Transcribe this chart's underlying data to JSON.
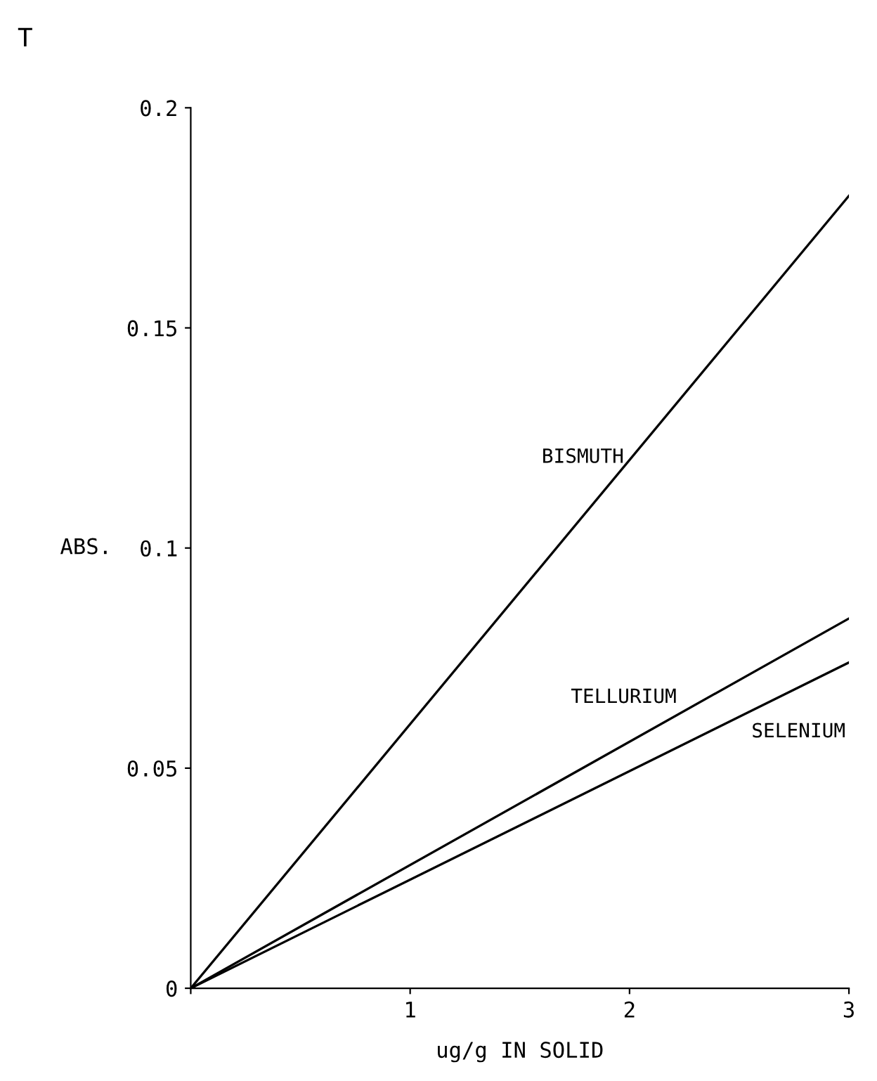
{
  "chart_data": {
    "type": "line",
    "xlabel": "ug/g IN SOLID",
    "ylabel": "ABS.",
    "annotations": [
      "T"
    ],
    "x": [
      0,
      3
    ],
    "series": [
      {
        "name": "BISMUTH",
        "color": "#000000",
        "values": [
          0,
          0.18
        ]
      },
      {
        "name": "TELLURIUM",
        "color": "#000000",
        "values": [
          0,
          0.084
        ]
      },
      {
        "name": "SELENIUM",
        "color": "#000000",
        "values": [
          0,
          0.074
        ]
      }
    ],
    "xlim": [
      0,
      3
    ],
    "xticks": [
      {
        "value": 0,
        "label": null
      },
      1,
      2,
      3
    ],
    "ylim": [
      0,
      0.2
    ],
    "yticks": [
      0,
      0.05,
      0.1,
      0.15,
      0.2
    ],
    "grid": false,
    "legend": false,
    "marker": "none",
    "line_style": "solid"
  }
}
